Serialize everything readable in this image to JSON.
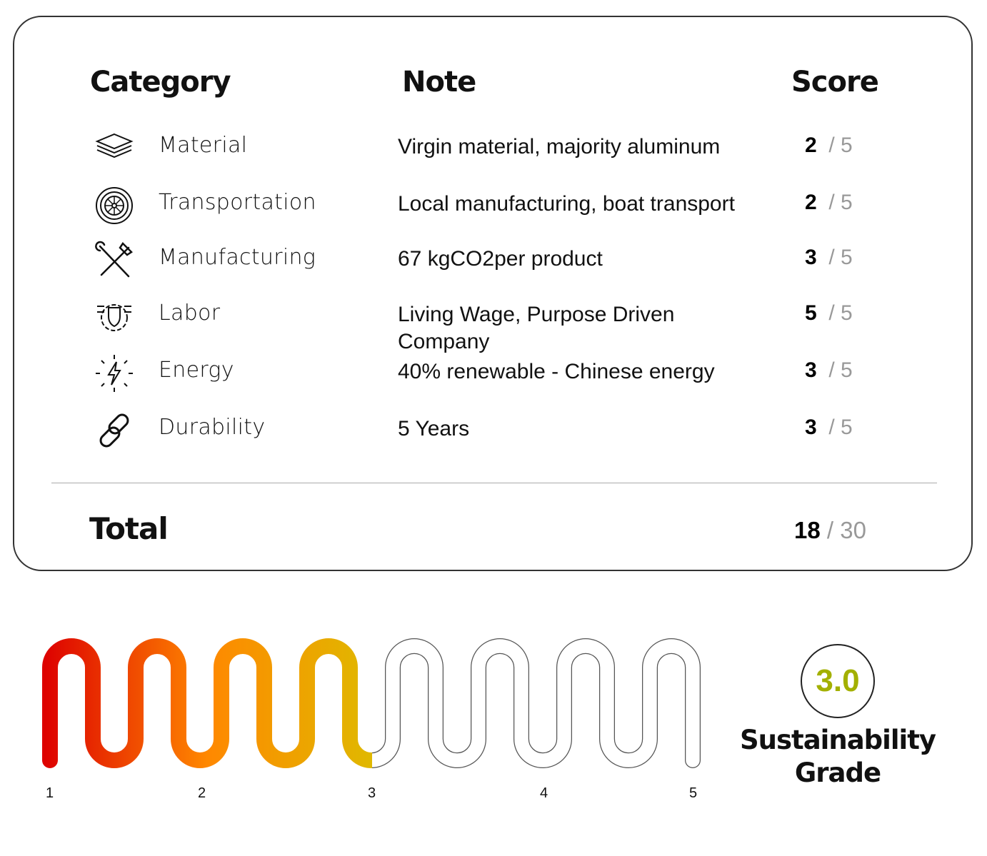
{
  "headers": {
    "category": "Category",
    "note": "Note",
    "score": "Score"
  },
  "rows": [
    {
      "icon": "layers-icon",
      "category": "Material",
      "note": "Virgin material, majority aluminum",
      "score": "2",
      "max": "/ 5"
    },
    {
      "icon": "tire-icon",
      "category": "Transportation",
      "note": "Local manufacturing, boat transport",
      "score": "2",
      "max": "/ 5"
    },
    {
      "icon": "tools-icon",
      "category": "Manufacturing",
      "note": "67 kgCO2per product",
      "score": "3",
      "max": "/ 5"
    },
    {
      "icon": "fist-gear-icon",
      "category": "Labor",
      "note": "Living Wage, Purpose Driven Company",
      "score": "5",
      "max": "/ 5"
    },
    {
      "icon": "energy-bolt-icon",
      "category": "Energy",
      "note": "40% renewable - Chinese energy",
      "score": "3",
      "max": "/ 5"
    },
    {
      "icon": "chain-link-icon",
      "category": "Durability",
      "note": "5 Years",
      "score": "3",
      "max": "/ 5"
    }
  ],
  "total": {
    "label": "Total",
    "score": "18",
    "max": "/ 30"
  },
  "meter": {
    "ticks": [
      "1",
      "2",
      "3",
      "4",
      "5"
    ],
    "value": 3.0,
    "min": 1,
    "max": 5,
    "colors": [
      "#dd0000",
      "#ff8800",
      "#e0b800"
    ]
  },
  "grade": {
    "value": "3.0",
    "label": "Sustainability Grade",
    "color": "#a3b000"
  }
}
